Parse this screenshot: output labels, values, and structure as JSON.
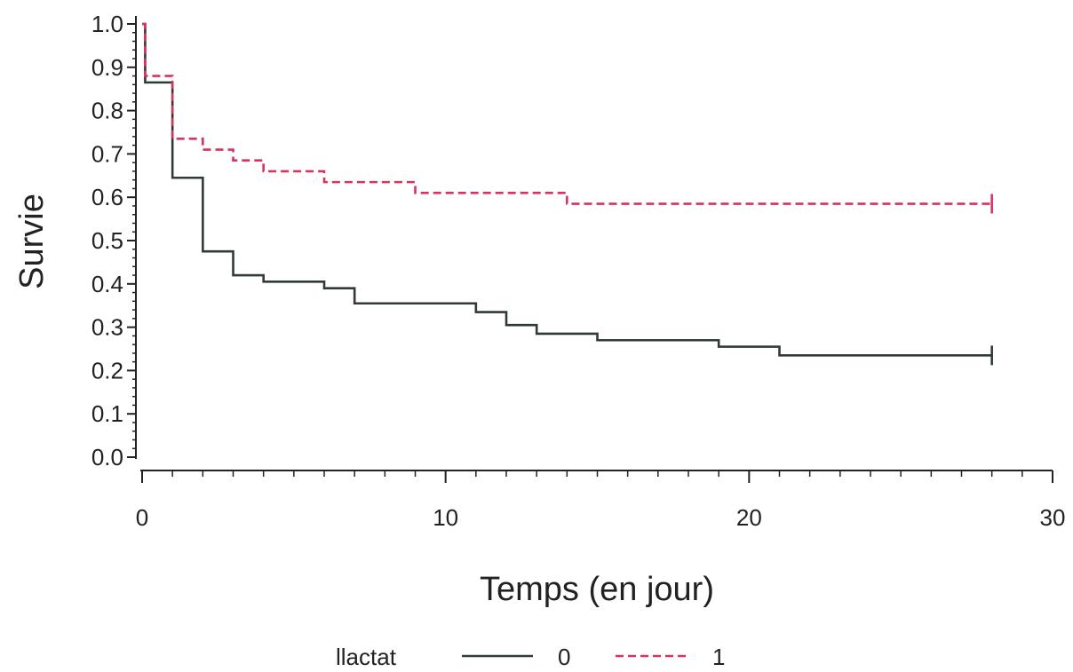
{
  "chart_data": {
    "type": "line",
    "xlabel": "Temps (en jour)",
    "ylabel": "Survie",
    "xlim": [
      0,
      30
    ],
    "ylim": [
      0,
      1
    ],
    "x_ticks": [
      0,
      10,
      20,
      30
    ],
    "x_tick_labels": [
      "0",
      "10",
      "20",
      "30"
    ],
    "x_minor_step": 1,
    "y_ticks": [
      0.0,
      0.1,
      0.2,
      0.3,
      0.4,
      0.5,
      0.6,
      0.7,
      0.8,
      0.9,
      1.0
    ],
    "y_tick_labels": [
      "0.0",
      "0.1",
      "0.2",
      "0.3",
      "0.4",
      "0.5",
      "0.6",
      "0.7",
      "0.8",
      "0.9",
      "1.0"
    ],
    "y_minor_step": 0.02,
    "grid": false,
    "step": true,
    "legend": {
      "title": "llactat",
      "position": "bottom"
    },
    "series": [
      {
        "name": "0",
        "color": "#2f3b36",
        "dash": "solid",
        "x": [
          0,
          0.1,
          1,
          2,
          3,
          4,
          6,
          7,
          11,
          12,
          13,
          15,
          19,
          21,
          28
        ],
        "y": [
          1.0,
          0.865,
          0.645,
          0.475,
          0.42,
          0.405,
          0.39,
          0.355,
          0.335,
          0.305,
          0.285,
          0.27,
          0.255,
          0.235,
          0.235
        ],
        "censor_end": true
      },
      {
        "name": "1",
        "color": "#d6335f",
        "dash": "dashed",
        "x": [
          0,
          0.1,
          1,
          2,
          3,
          4,
          6,
          9,
          14,
          28
        ],
        "y": [
          1.0,
          0.88,
          0.735,
          0.71,
          0.685,
          0.66,
          0.635,
          0.61,
          0.585,
          0.585
        ],
        "censor_end": true
      }
    ]
  }
}
